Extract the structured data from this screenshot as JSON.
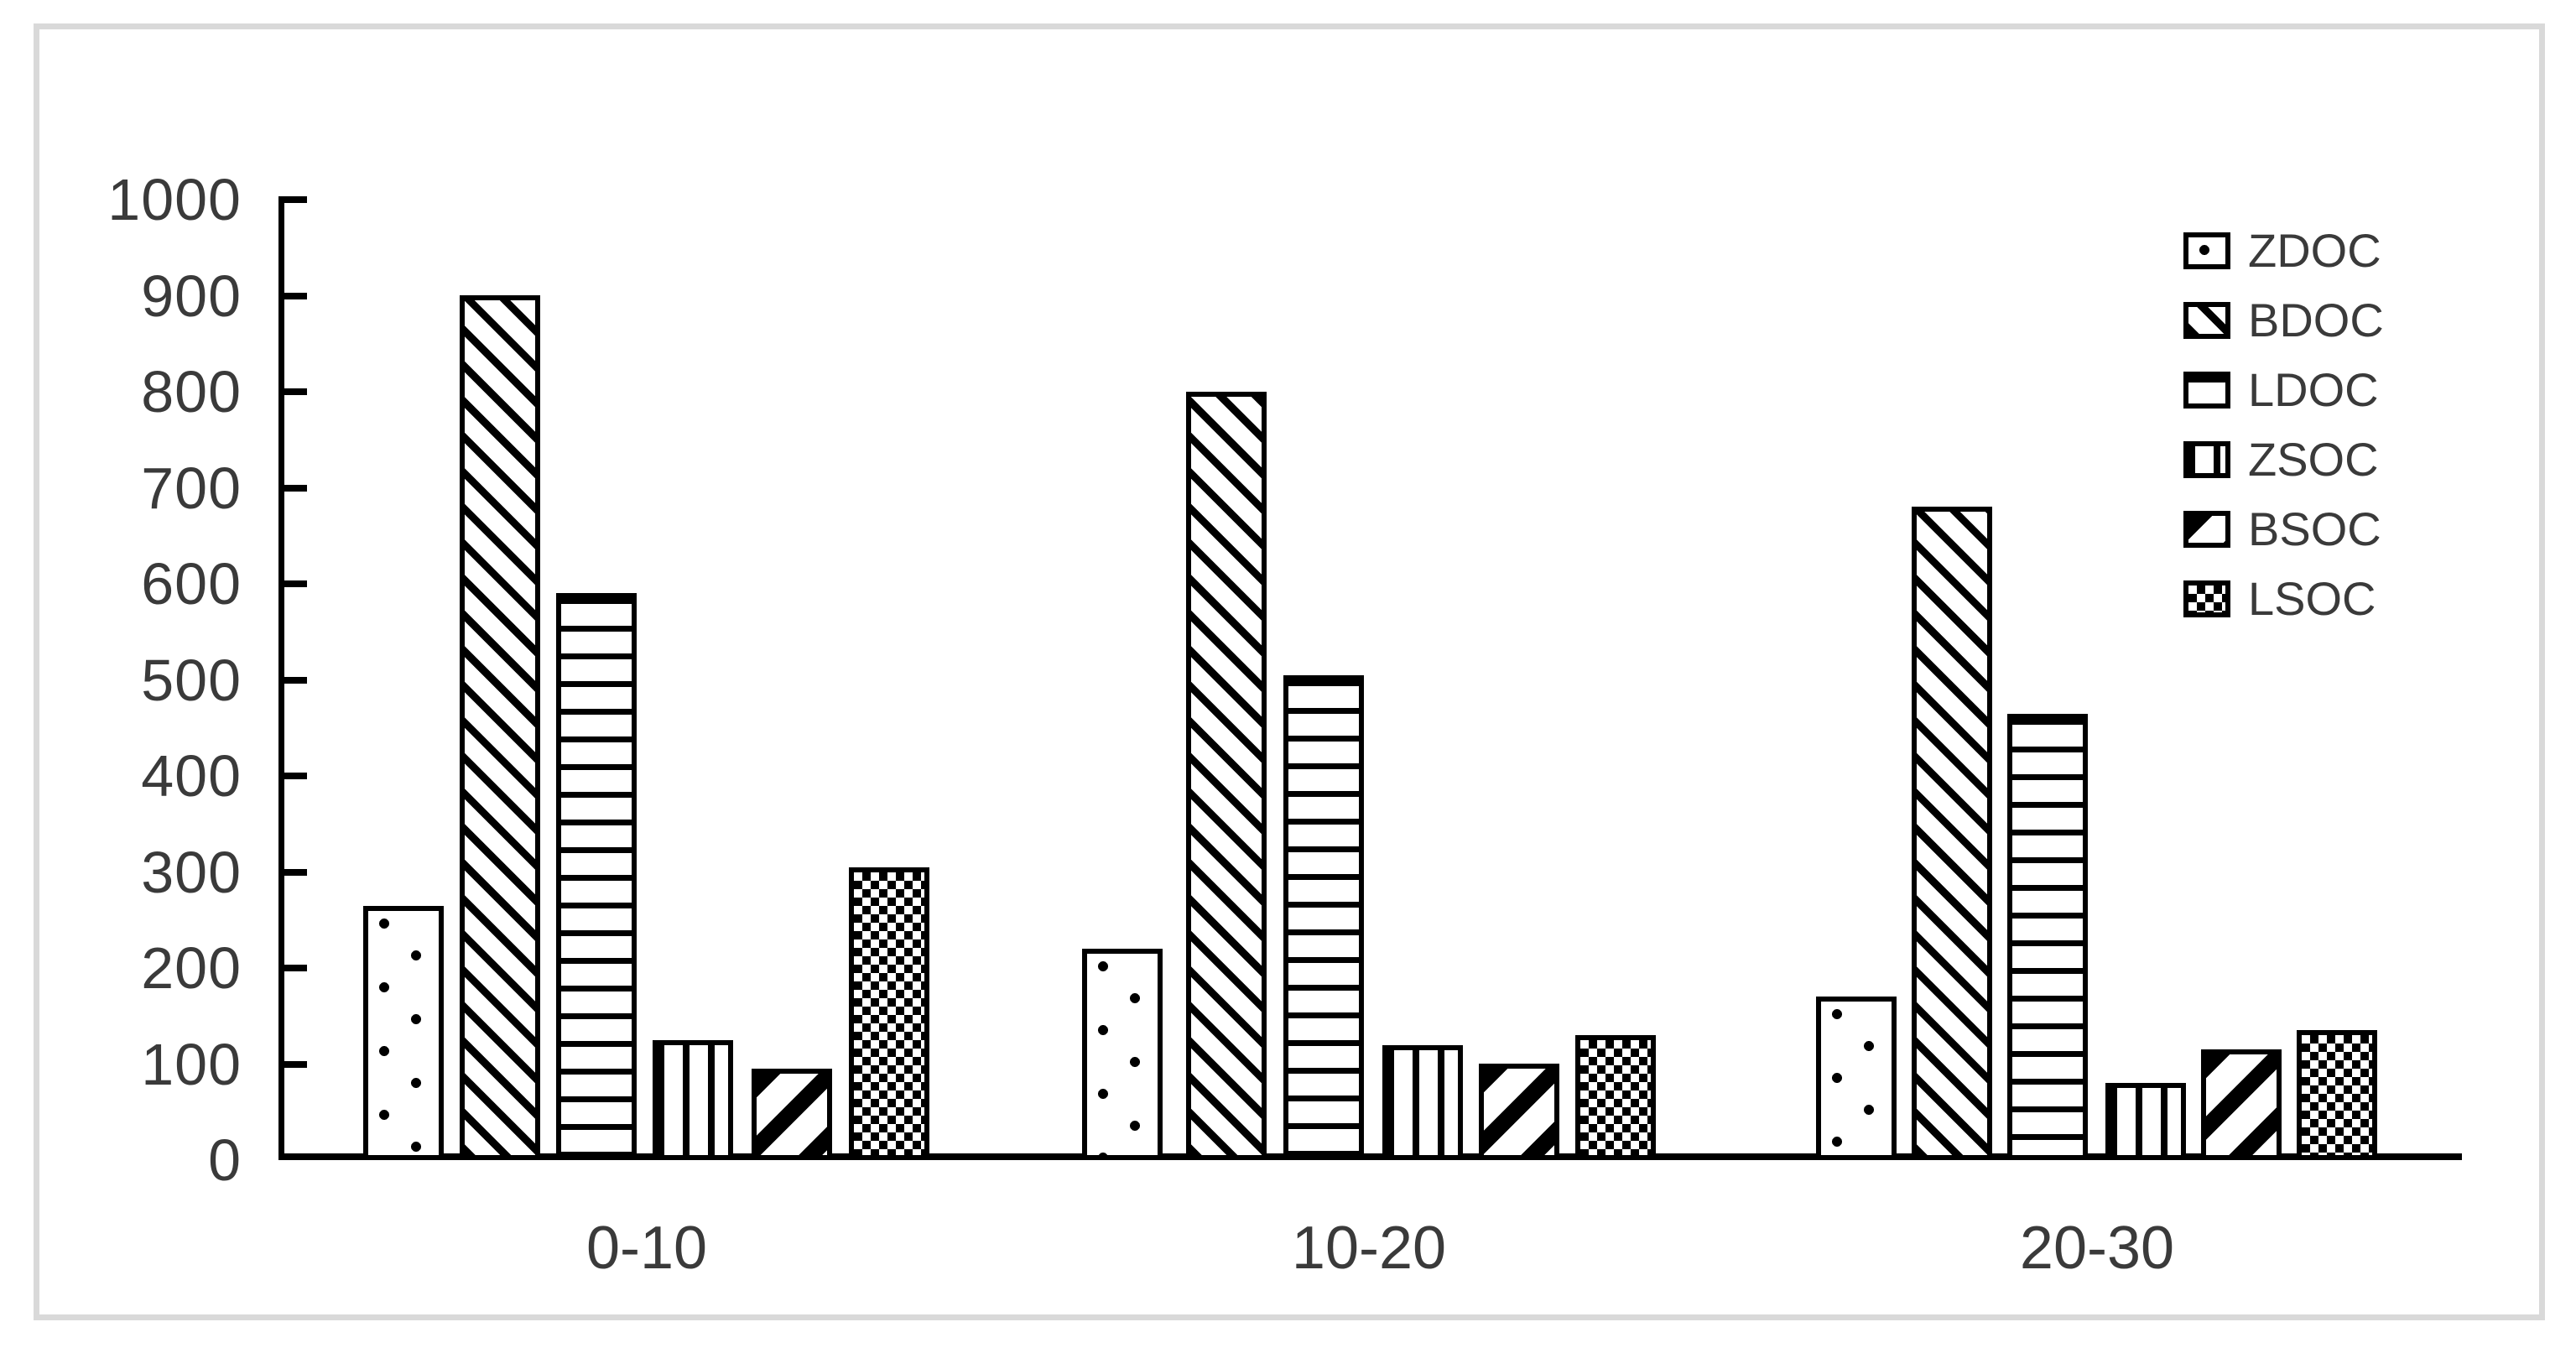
{
  "chart_data": {
    "type": "bar",
    "title": "",
    "xlabel": "",
    "ylabel": "",
    "categories": [
      "0-10",
      "10-20",
      "20-30"
    ],
    "series": [
      {
        "name": "ZDOC",
        "pattern": "dots",
        "values": [
          265,
          220,
          170
        ]
      },
      {
        "name": "BDOC",
        "pattern": "diagonal-backslash",
        "values": [
          900,
          800,
          680
        ]
      },
      {
        "name": "LDOC",
        "pattern": "horizontal-lines",
        "values": [
          590,
          505,
          465
        ]
      },
      {
        "name": "ZSOC",
        "pattern": "vertical-lines",
        "values": [
          125,
          120,
          80
        ]
      },
      {
        "name": "BSOC",
        "pattern": "diagonal-slash",
        "values": [
          95,
          100,
          115
        ]
      },
      {
        "name": "LSOC",
        "pattern": "checkerboard",
        "values": [
          305,
          130,
          135
        ]
      }
    ],
    "ylim": [
      0,
      1000
    ],
    "ytick_step": 100,
    "ytick_labels": [
      "0",
      "100",
      "200",
      "300",
      "400",
      "500",
      "600",
      "700",
      "800",
      "900",
      "1000"
    ],
    "grid": false,
    "legend_position": "upper-right",
    "legend_entries": [
      "ZDOC",
      "BDOC",
      "LDOC",
      "ZSOC",
      "BSOC",
      "LSOC"
    ],
    "colors": {
      "bar_fill": "#ffffff",
      "bar_stroke": "#000000",
      "axis": "#000000",
      "text": "#3a3a3a",
      "frame_border": "#d9d9d9"
    }
  }
}
